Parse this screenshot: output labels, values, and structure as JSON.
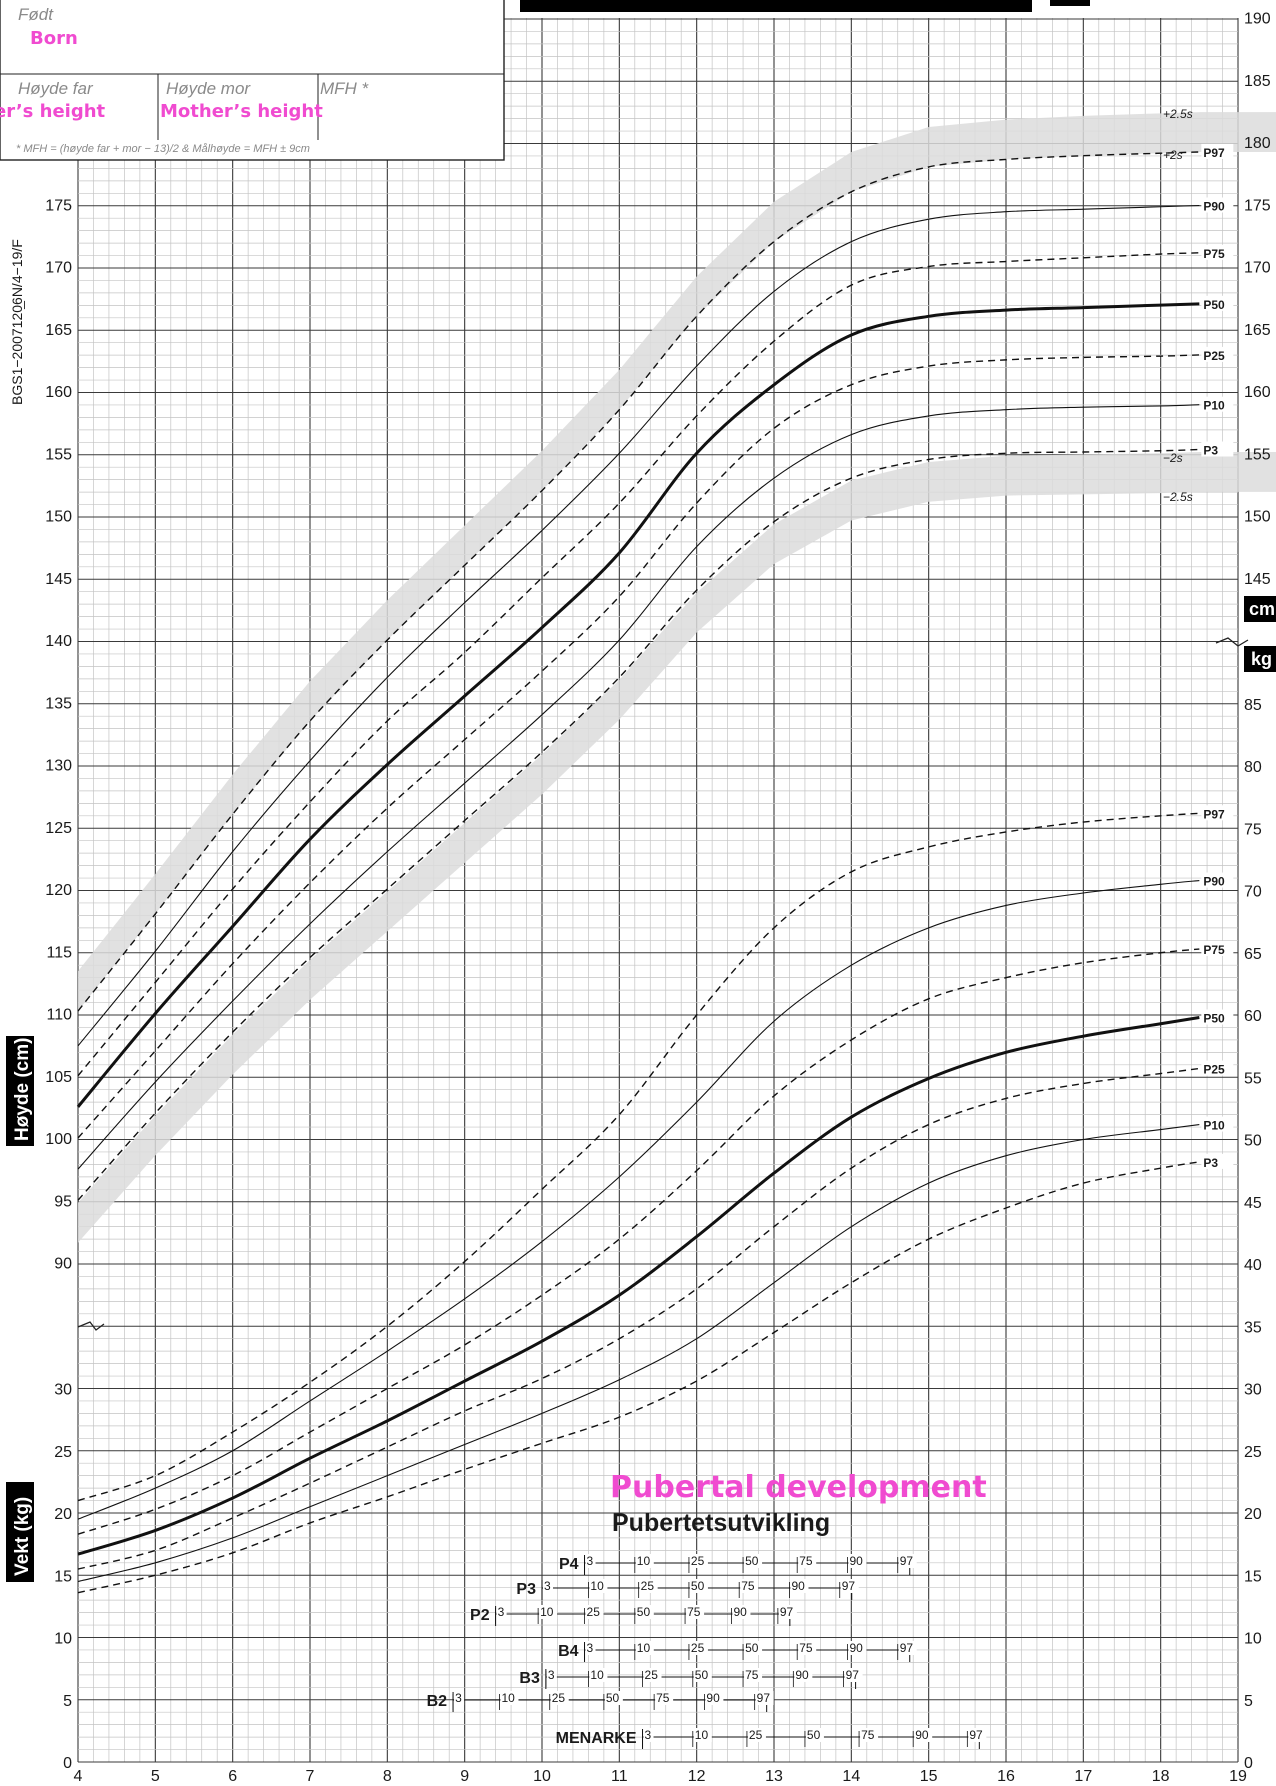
{
  "header": {
    "born_label": "Født",
    "born_translation": "Born",
    "father_label": "Høyde far",
    "father_translation": "er’s height",
    "mother_label": "Høyde mor",
    "mother_translation": "Mother’s height",
    "mfh_label": "MFH *",
    "footnote": "* MFH = (høyde far + mor − 13)/2   &   Målhøyde = MFH ± 9cm"
  },
  "side_code": "BGS1−2007120̲6N/4−19/F",
  "axis_labels": {
    "height": "Høyde (cm)",
    "weight": "Vekt (kg)",
    "cm_tag": "cm",
    "kg_tag": "kg"
  },
  "puberty": {
    "title": "Pubertetsutvikling",
    "title_translation": "Pubertal development",
    "bars": [
      {
        "label": "P4",
        "start": 10.55,
        "ticks": [
          [
            "3",
            10.55
          ],
          [
            "10",
            11.2
          ],
          [
            "25",
            11.9
          ],
          [
            "50",
            12.6
          ],
          [
            "75",
            13.3
          ],
          [
            "90",
            13.95
          ],
          [
            "97",
            14.6
          ]
        ]
      },
      {
        "label": "P3",
        "start": 10.0,
        "ticks": [
          [
            "3",
            10.0
          ],
          [
            "10",
            10.6
          ],
          [
            "25",
            11.25
          ],
          [
            "50",
            11.9
          ],
          [
            "75",
            12.55
          ],
          [
            "90",
            13.2
          ],
          [
            "97",
            13.85
          ]
        ]
      },
      {
        "label": "P2",
        "start": 9.4,
        "ticks": [
          [
            "3",
            9.4
          ],
          [
            "10",
            9.95
          ],
          [
            "25",
            10.55
          ],
          [
            "50",
            11.2
          ],
          [
            "75",
            11.85
          ],
          [
            "90",
            12.45
          ],
          [
            "97",
            13.05
          ]
        ]
      },
      {
        "label": "B4",
        "start": 10.55,
        "ticks": [
          [
            "3",
            10.55
          ],
          [
            "10",
            11.2
          ],
          [
            "25",
            11.9
          ],
          [
            "50",
            12.6
          ],
          [
            "75",
            13.3
          ],
          [
            "90",
            13.95
          ],
          [
            "97",
            14.6
          ]
        ]
      },
      {
        "label": "B3",
        "start": 10.05,
        "ticks": [
          [
            "3",
            10.05
          ],
          [
            "10",
            10.6
          ],
          [
            "25",
            11.3
          ],
          [
            "50",
            11.95
          ],
          [
            "75",
            12.6
          ],
          [
            "90",
            13.25
          ],
          [
            "97",
            13.9
          ]
        ]
      },
      {
        "label": "B2",
        "start": 8.85,
        "ticks": [
          [
            "3",
            8.85
          ],
          [
            "10",
            9.45
          ],
          [
            "25",
            10.1
          ],
          [
            "50",
            10.8
          ],
          [
            "75",
            11.45
          ],
          [
            "90",
            12.1
          ],
          [
            "97",
            12.75
          ]
        ]
      },
      {
        "label": "MENARKE",
        "start": 11.3,
        "ticks": [
          [
            "3",
            11.3
          ],
          [
            "10",
            11.95
          ],
          [
            "25",
            12.65
          ],
          [
            "50",
            13.4
          ],
          [
            "75",
            14.1
          ],
          [
            "90",
            14.8
          ],
          [
            "97",
            15.5
          ]
        ]
      }
    ]
  },
  "chart_data": {
    "type": "line",
    "x": [
      4,
      5,
      6,
      7,
      8,
      9,
      10,
      11,
      12,
      13,
      14,
      15,
      16,
      17,
      18,
      18.5
    ],
    "xticks": [
      "4",
      "5",
      "6",
      "7",
      "8",
      "9",
      "10",
      "11",
      "12",
      "13",
      "14",
      "15",
      "16",
      "17",
      "18",
      "19"
    ],
    "xlim": [
      4,
      19
    ],
    "height_axis": {
      "ylim": [
        85,
        190
      ],
      "left_ticks": [
        "90",
        "95",
        "100",
        "105",
        "110",
        "115",
        "120",
        "125",
        "130",
        "135",
        "140",
        "145",
        "150",
        "155",
        "160",
        "165",
        "170",
        "175"
      ],
      "right_ticks": [
        "145",
        "150",
        "155",
        "160",
        "165",
        "170",
        "175",
        "180",
        "185",
        "190"
      ]
    },
    "weight_axis": {
      "ylim": [
        0,
        88
      ],
      "left_ticks": [
        "0",
        "5",
        "10",
        "15",
        "20",
        "25",
        "30"
      ],
      "right_ticks": [
        "0",
        "5",
        "10",
        "15",
        "20",
        "25",
        "30",
        "35",
        "40",
        "45",
        "50",
        "55",
        "60",
        "65",
        "70",
        "75",
        "80",
        "85"
      ]
    },
    "height_band_labels": [
      "+2.5s",
      "+2s",
      "−2s",
      "−2.5s"
    ],
    "height_series": [
      {
        "name": "P97",
        "style": "dashed",
        "values": [
          110.2,
          118,
          126,
          133.5,
          140,
          146,
          152,
          158.5,
          166,
          172,
          176,
          178,
          178.6,
          178.9,
          179.1,
          179.2
        ]
      },
      {
        "name": "P90",
        "style": "thin",
        "values": [
          107.4,
          115,
          123,
          130.3,
          137,
          143,
          148.8,
          155,
          162,
          168,
          172,
          173.8,
          174.4,
          174.6,
          174.8,
          174.9
        ]
      },
      {
        "name": "P75",
        "style": "dashed",
        "values": [
          105,
          112.5,
          120,
          127,
          133.5,
          139,
          145,
          151,
          158,
          164,
          168.5,
          170,
          170.4,
          170.7,
          171,
          171.1
        ]
      },
      {
        "name": "P50",
        "style": "bold",
        "values": [
          102.5,
          110,
          117,
          124,
          130,
          135.5,
          141,
          147,
          155,
          160.5,
          164.5,
          166,
          166.5,
          166.7,
          166.9,
          167.0
        ]
      },
      {
        "name": "P25",
        "style": "dashed",
        "values": [
          100,
          107,
          114,
          120.5,
          126.5,
          132,
          137.5,
          143.5,
          151,
          157,
          160.5,
          162,
          162.5,
          162.7,
          162.8,
          162.9
        ]
      },
      {
        "name": "P10",
        "style": "thin",
        "values": [
          97.5,
          104.5,
          111,
          117.2,
          123,
          128.5,
          134,
          140,
          147.5,
          153,
          156.5,
          158,
          158.5,
          158.7,
          158.8,
          158.9
        ]
      },
      {
        "name": "P3",
        "style": "dashed",
        "values": [
          95,
          102,
          108.5,
          114.5,
          120,
          125.5,
          131,
          137,
          144,
          149.5,
          153,
          154.5,
          155,
          155.1,
          155.2,
          155.3
        ]
      }
    ],
    "weight_series": [
      {
        "name": "P97",
        "style": "dashed",
        "values": [
          21,
          23,
          26.5,
          30.5,
          35,
          40.2,
          46,
          52,
          60,
          67,
          71.5,
          73.5,
          74.7,
          75.5,
          76,
          76.2
        ]
      },
      {
        "name": "P90",
        "style": "thin",
        "values": [
          19.5,
          22,
          25,
          29,
          33,
          37.2,
          41.8,
          47,
          53,
          59.5,
          64,
          67,
          68.8,
          69.8,
          70.5,
          70.8
        ]
      },
      {
        "name": "P75",
        "style": "dashed",
        "values": [
          18.3,
          20.3,
          23,
          26.5,
          30,
          33.5,
          37.5,
          42,
          47.5,
          53.5,
          58,
          61.3,
          63,
          64.2,
          65,
          65.3
        ]
      },
      {
        "name": "P50",
        "style": "bold",
        "values": [
          16.7,
          18.6,
          21.2,
          24.4,
          27.4,
          30.6,
          33.8,
          37.5,
          42.2,
          47.3,
          51.8,
          54.9,
          57,
          58.3,
          59.3,
          59.8
        ]
      },
      {
        "name": "P25",
        "style": "dashed",
        "values": [
          15.5,
          17,
          19.6,
          22.4,
          25.3,
          28.2,
          30.8,
          34,
          38,
          43,
          47.7,
          51.2,
          53.3,
          54.5,
          55.3,
          55.7
        ]
      },
      {
        "name": "P10",
        "style": "thin",
        "values": [
          14.5,
          16,
          18,
          20.5,
          23,
          25.5,
          28,
          30.7,
          34,
          38.5,
          43,
          46.5,
          48.7,
          50,
          50.8,
          51.2
        ]
      },
      {
        "name": "P3",
        "style": "dashed",
        "values": [
          13.6,
          15,
          16.8,
          19.2,
          21.3,
          23.5,
          25.6,
          27.7,
          30.6,
          34.5,
          38.5,
          42,
          44.5,
          46.5,
          47.7,
          48.2
        ]
      }
    ]
  }
}
